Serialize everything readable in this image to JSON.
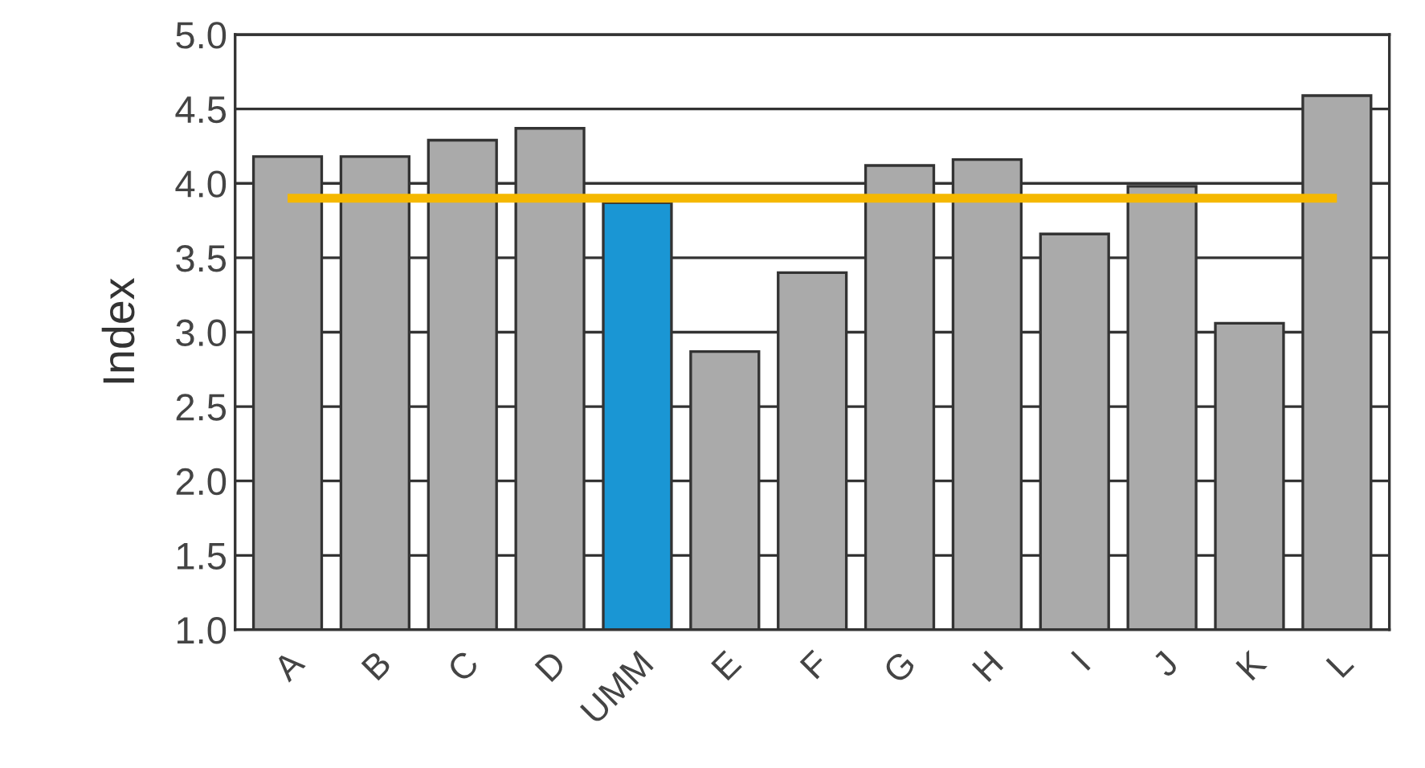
{
  "chart_data": {
    "type": "bar",
    "ylabel": "Index",
    "categories": [
      "A",
      "B",
      "C",
      "D",
      "UMM",
      "E",
      "F",
      "G",
      "H",
      "I",
      "J",
      "K",
      "L"
    ],
    "values": [
      4.18,
      4.18,
      4.29,
      4.37,
      3.87,
      2.87,
      3.4,
      4.12,
      4.16,
      3.66,
      3.98,
      3.06,
      4.59
    ],
    "colors": [
      "#aaaaaa",
      "#aaaaaa",
      "#aaaaaa",
      "#aaaaaa",
      "#1a96d4",
      "#aaaaaa",
      "#aaaaaa",
      "#aaaaaa",
      "#aaaaaa",
      "#aaaaaa",
      "#aaaaaa",
      "#aaaaaa",
      "#aaaaaa"
    ],
    "ylim": [
      1.0,
      5.0
    ],
    "yticks": [
      {
        "value": 1.0,
        "label": "1.0"
      },
      {
        "value": 1.5,
        "label": "1.5"
      },
      {
        "value": 2.0,
        "label": "2.0"
      },
      {
        "value": 2.5,
        "label": "2.5"
      },
      {
        "value": 3.0,
        "label": "3.0"
      },
      {
        "value": 3.5,
        "label": "3.5"
      },
      {
        "value": 4.0,
        "label": "4.0"
      },
      {
        "value": 4.5,
        "label": "4.5"
      },
      {
        "value": 5.0,
        "label": "5.0"
      }
    ],
    "grid": "y",
    "ref_lines": [
      {
        "axis": "y",
        "value": 3.9,
        "color": "#f5b800",
        "line_style": "solid"
      }
    ]
  }
}
